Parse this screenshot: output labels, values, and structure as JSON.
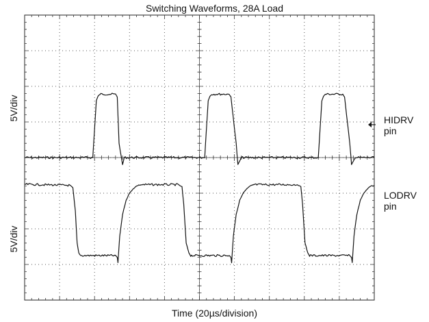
{
  "chart_data": {
    "type": "line",
    "title": "Switching Waveforms, 28A Load",
    "xlabel": "Time (20µs/division)",
    "x_divisions": 10,
    "y_divisions": 8,
    "grid": true,
    "channels": [
      {
        "ylabel": "5V/div",
        "marker_label": [
          "HIDRV",
          "pin"
        ],
        "baseline_div": 4.0,
        "high_div": 2.2,
        "x_div": [
          0,
          1.6,
          1.8,
          1.95,
          2.0,
          2.05,
          2.1,
          2.15,
          2.6,
          2.65,
          2.7,
          2.8,
          2.85,
          3.0,
          3.2,
          5.05,
          5.15,
          5.2,
          5.25,
          5.3,
          5.35,
          5.85,
          5.9,
          6.05,
          6.1,
          6.2,
          6.4,
          8.3,
          8.4,
          8.45,
          8.5,
          8.55,
          8.6,
          9.1,
          9.15,
          9.3,
          9.35,
          9.45,
          9.65,
          10
        ],
        "y_div": [
          4.0,
          4.0,
          4.0,
          4.0,
          3.2,
          2.4,
          2.28,
          2.22,
          2.22,
          2.3,
          3.6,
          4.2,
          4.0,
          4.0,
          4.0,
          4.0,
          4.0,
          3.2,
          2.4,
          2.28,
          2.22,
          2.22,
          2.3,
          3.6,
          4.2,
          4.0,
          4.0,
          4.0,
          4.0,
          3.2,
          2.4,
          2.28,
          2.22,
          2.22,
          2.3,
          3.6,
          4.2,
          4.0,
          4.0,
          4.0
        ]
      },
      {
        "ylabel": "5V/div",
        "marker_label": [
          "LODRV",
          "pin"
        ],
        "high_div": 4.75,
        "low_div": 6.75,
        "x_div": [
          0,
          1.3,
          1.38,
          1.45,
          1.5,
          1.55,
          1.6,
          2.6,
          2.65,
          2.67,
          2.72,
          2.8,
          2.9,
          3.0,
          3.1,
          3.2,
          3.3,
          4.4,
          4.5,
          4.55,
          4.62,
          4.7,
          4.75,
          4.8,
          5.85,
          5.9,
          5.92,
          5.97,
          6.05,
          6.15,
          6.25,
          6.35,
          6.45,
          6.55,
          7.8,
          7.9,
          7.95,
          8.02,
          8.1,
          8.15,
          8.2,
          9.3,
          9.35,
          9.37,
          9.42,
          9.5,
          9.6,
          9.7,
          9.8,
          9.9,
          10
        ],
        "y_div": [
          4.75,
          4.78,
          4.85,
          5.5,
          6.4,
          6.68,
          6.75,
          6.75,
          6.8,
          6.95,
          6.2,
          5.6,
          5.2,
          5.0,
          4.88,
          4.8,
          4.76,
          4.76,
          4.82,
          5.3,
          6.4,
          6.68,
          6.75,
          6.75,
          6.75,
          6.8,
          6.95,
          6.2,
          5.6,
          5.2,
          5.0,
          4.88,
          4.8,
          4.76,
          4.76,
          4.82,
          5.3,
          6.4,
          6.68,
          6.75,
          6.75,
          6.75,
          6.8,
          6.95,
          6.2,
          5.6,
          5.2,
          5.0,
          4.88,
          4.8,
          4.78
        ]
      }
    ]
  }
}
